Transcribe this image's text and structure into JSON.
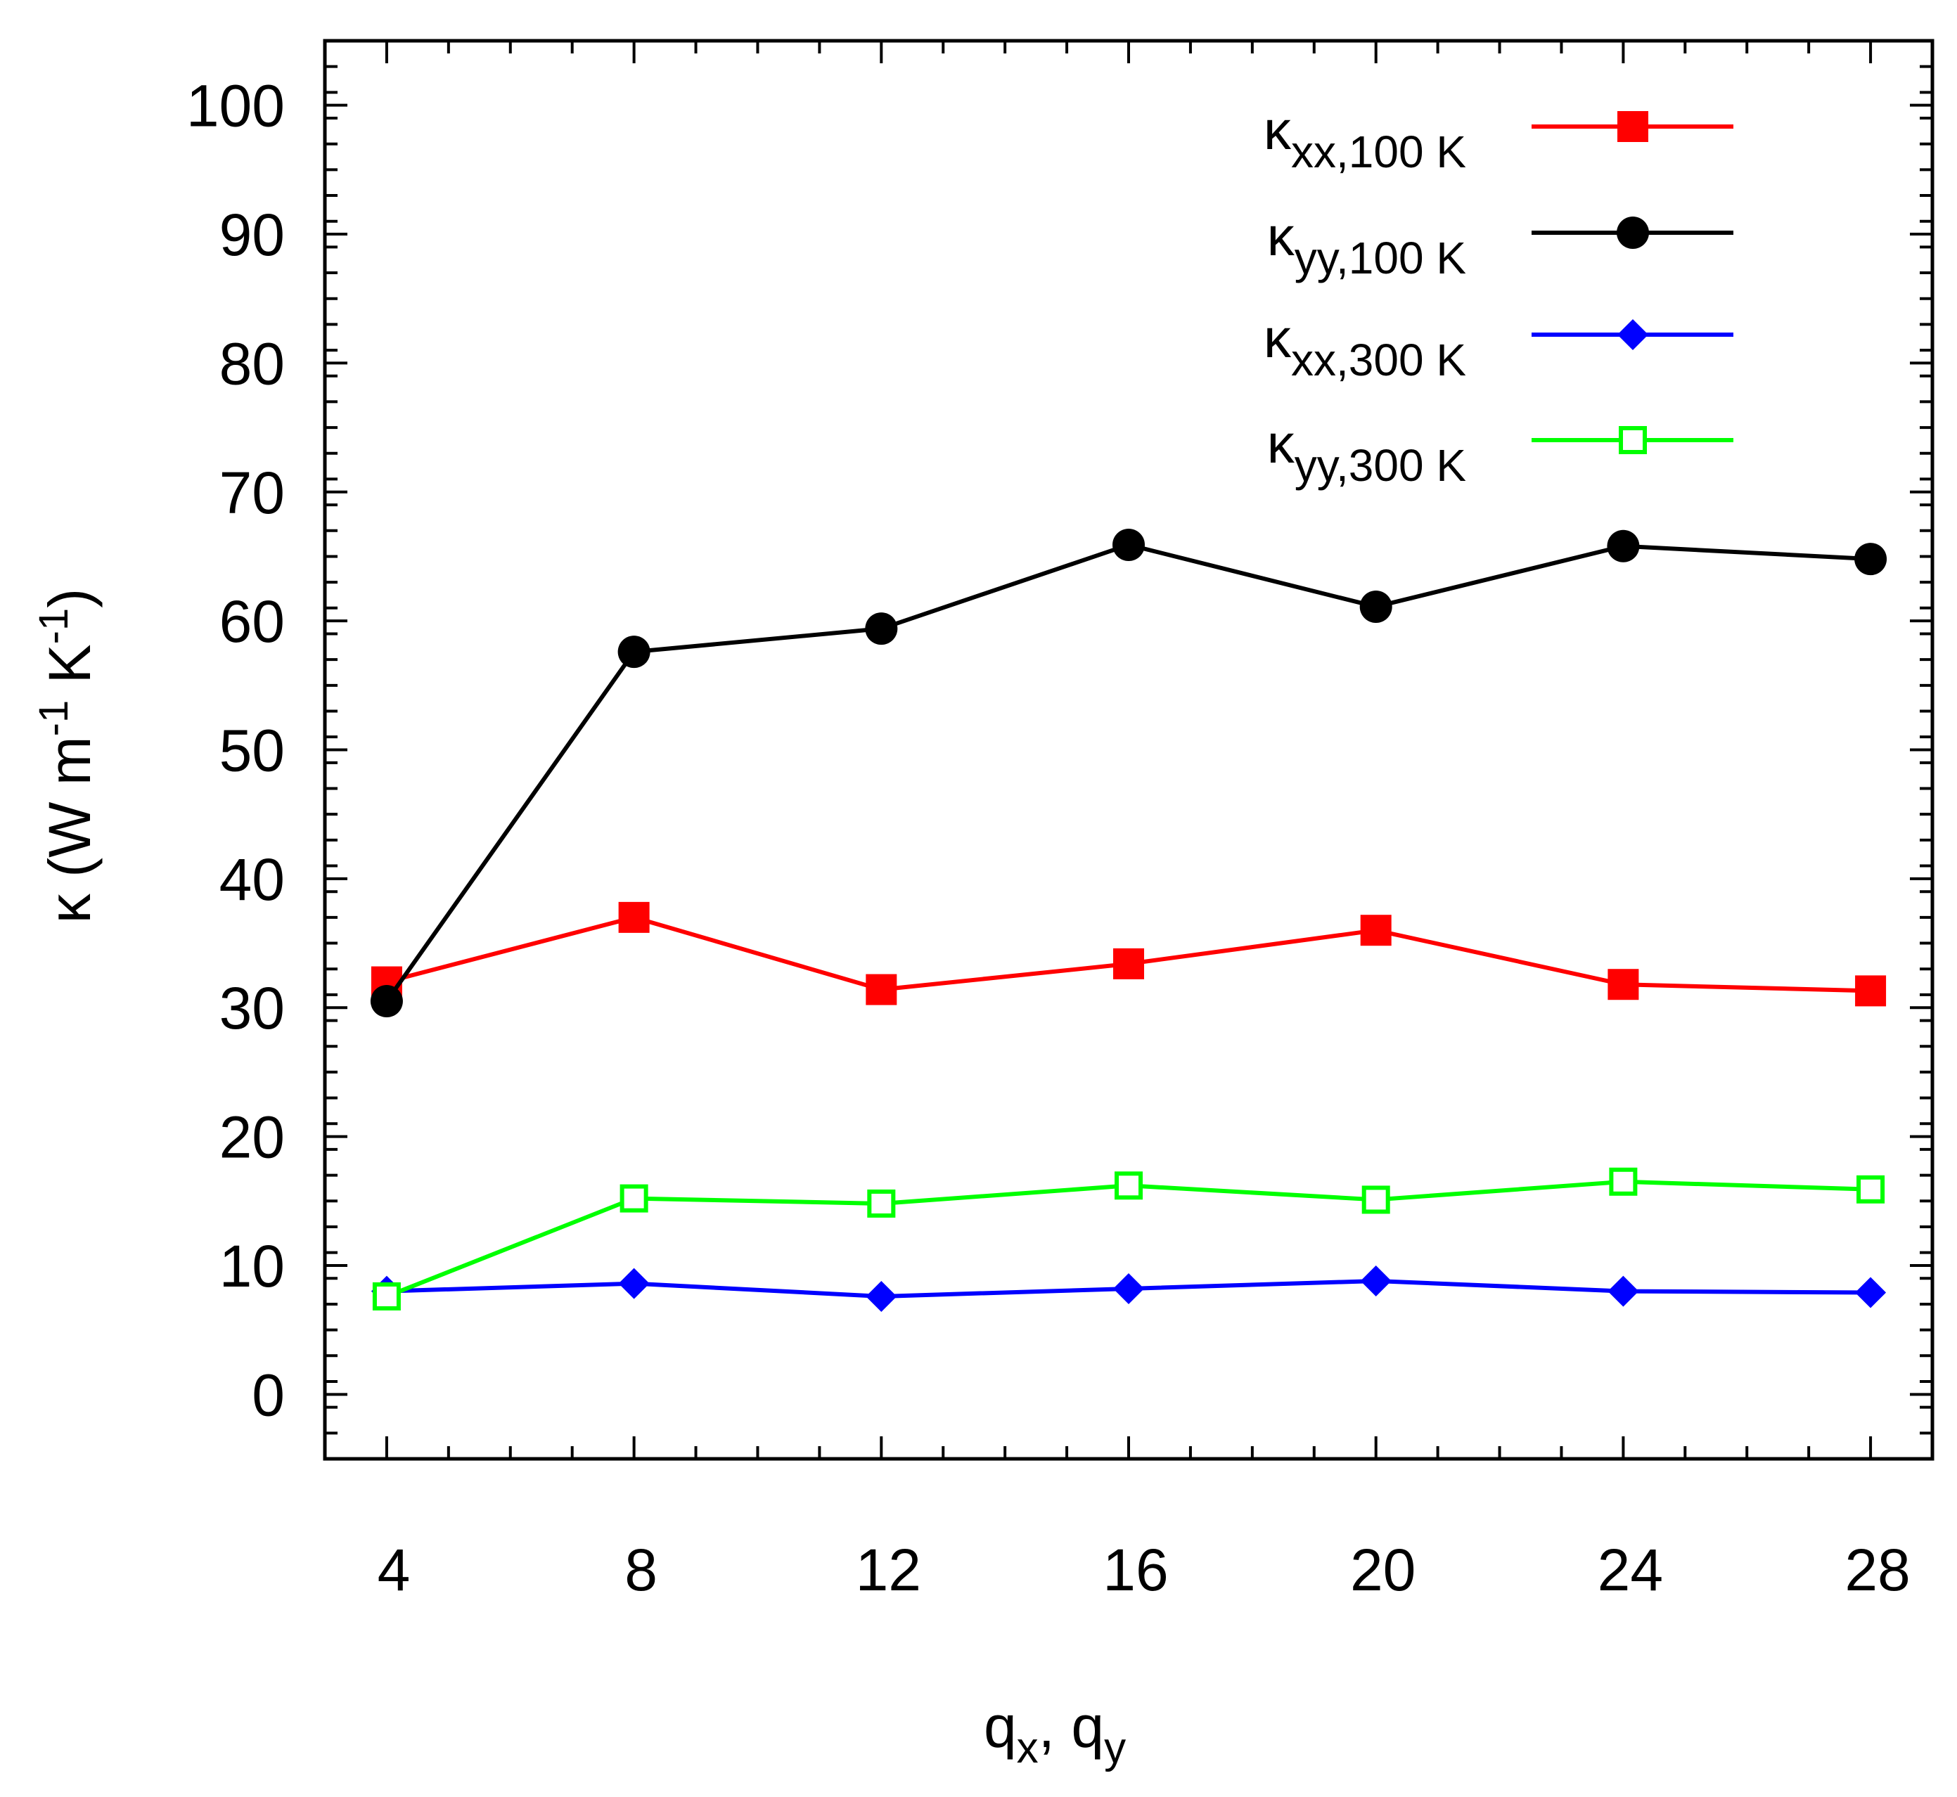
{
  "chart_data": {
    "type": "line",
    "title": "",
    "xlabel": {
      "base": "q",
      "sub1": "x",
      "mid": ", q",
      "sub2": "y"
    },
    "ylabel": {
      "a": "κ (W m",
      "exp1": "-1",
      "b": " K",
      "exp2": "-1",
      "c": ")"
    },
    "x": [
      4,
      8,
      12,
      16,
      20,
      24,
      28
    ],
    "xlim": [
      3,
      29
    ],
    "ylim": [
      -5,
      105
    ],
    "xticks": [
      4,
      8,
      12,
      16,
      20,
      24,
      28
    ],
    "xtick_labels": [
      "4",
      "8",
      "12",
      "16",
      "20",
      "24",
      "28"
    ],
    "yticks": [
      0,
      10,
      20,
      30,
      40,
      50,
      60,
      70,
      80,
      90,
      100
    ],
    "ytick_labels": [
      "0",
      "10",
      "20",
      "30",
      "40",
      "50",
      "60",
      "70",
      "80",
      "90",
      "100"
    ],
    "grid": false,
    "legend_position": "top-right",
    "series": [
      {
        "name": "κxx,100 K",
        "kappa": "κ",
        "sub": "xx,100 K",
        "color": "#ff0000",
        "marker": "filled-square",
        "values": [
          32.0,
          37.0,
          31.4,
          33.4,
          36.0,
          31.8,
          31.3
        ]
      },
      {
        "name": "κyy,100 K",
        "kappa": "κ",
        "sub": "yy,100 K",
        "color": "#000000",
        "marker": "filled-circle",
        "values": [
          30.5,
          57.6,
          59.4,
          65.9,
          61.1,
          65.8,
          64.8
        ]
      },
      {
        "name": "κxx,300 K",
        "kappa": "κ",
        "sub": "xx,300 K",
        "color": "#0000ff",
        "marker": "filled-diamond",
        "values": [
          8.0,
          8.6,
          7.6,
          8.2,
          8.8,
          8.0,
          7.9
        ]
      },
      {
        "name": "κyy,300 K",
        "kappa": "κ",
        "sub": "yy,300 K",
        "color": "#00ff00",
        "marker": "open-square",
        "values": [
          7.6,
          15.2,
          14.8,
          16.2,
          15.1,
          16.5,
          15.9
        ]
      }
    ]
  }
}
